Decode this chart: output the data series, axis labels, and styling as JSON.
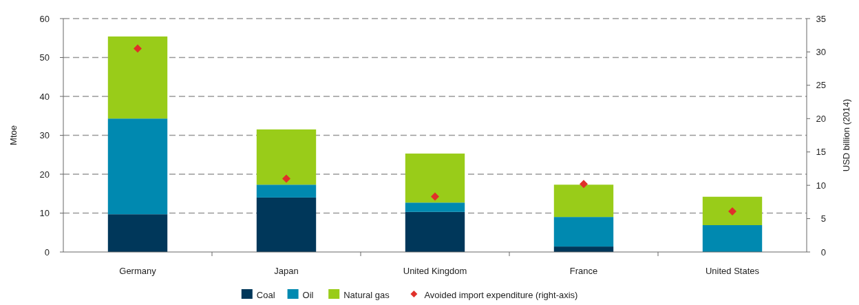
{
  "chart_data": {
    "type": "bar",
    "stacked": true,
    "categories": [
      "Germany",
      "Japan",
      "United Kingdom",
      "France",
      "United States"
    ],
    "ylabel": "Mtoe",
    "y2label": "USD billion (2014)",
    "ylim": [
      0,
      60
    ],
    "yticks": [
      0,
      10,
      20,
      30,
      40,
      50,
      60
    ],
    "y2lim": [
      0,
      35
    ],
    "y2ticks": [
      0,
      5,
      10,
      15,
      20,
      25,
      30,
      35
    ],
    "grid": "y",
    "legend": "bottom",
    "series": [
      {
        "name": "Coal",
        "color": "#00375a",
        "values": [
          9.7,
          14.0,
          10.3,
          1.4,
          0
        ]
      },
      {
        "name": "Oil",
        "color": "#0089b0",
        "values": [
          24.6,
          3.3,
          2.4,
          7.6,
          6.9
        ]
      },
      {
        "name": "Natural gas",
        "color": "#99cc19",
        "values": [
          21.1,
          14.2,
          12.6,
          8.3,
          7.3
        ]
      },
      {
        "name": "Avoided import expenditure (right-axis)",
        "type": "scatter",
        "axis": "y2",
        "marker": "diamond",
        "color": "#e0302a",
        "x": [
          "Germany",
          "Japan",
          "United Kingdom",
          "France",
          "United States"
        ],
        "values": [
          30.5,
          11.0,
          8.3,
          10.2,
          6.1
        ]
      }
    ]
  }
}
